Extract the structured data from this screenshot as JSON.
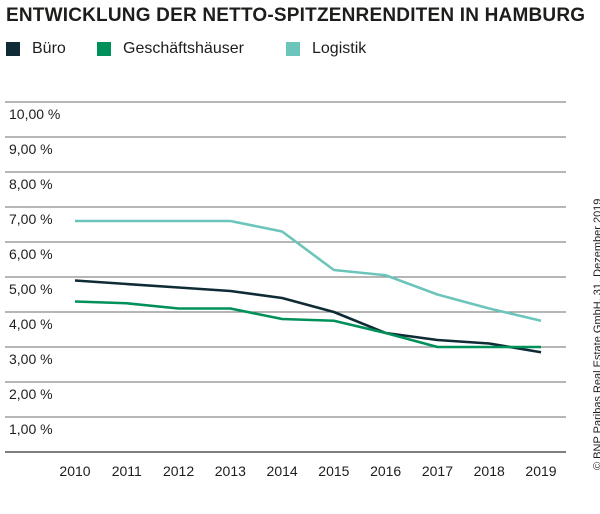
{
  "chart_data": {
    "type": "line",
    "title": "ENTWICKLUNG DER NETTO-SPITZENRENDITEN IN HAMBURG",
    "x": [
      "2010",
      "2011",
      "2012",
      "2013",
      "2014",
      "2015",
      "2016",
      "2017",
      "2018",
      "2019"
    ],
    "y_ticks": [
      "1,00 %",
      "2,00 %",
      "3,00 %",
      "4,00 %",
      "5,00 %",
      "6,00 %",
      "7,00 %",
      "8,00 %",
      "9,00 %",
      "10,00 %"
    ],
    "ylim": [
      0,
      10
    ],
    "grid": true,
    "legend_position": "top-left",
    "series": [
      {
        "name": "Büro",
        "color": "#0f2b35",
        "values": [
          4.9,
          4.8,
          4.7,
          4.6,
          4.4,
          4.0,
          3.4,
          3.2,
          3.1,
          2.85
        ]
      },
      {
        "name": "Geschäftshäuser",
        "color": "#00915a",
        "values": [
          4.3,
          4.25,
          4.1,
          4.1,
          3.8,
          3.75,
          3.4,
          3.0,
          3.0,
          3.0
        ]
      },
      {
        "name": "Logistik",
        "color": "#6cc5bb",
        "values": [
          6.6,
          6.6,
          6.6,
          6.6,
          6.3,
          5.2,
          5.05,
          4.5,
          4.1,
          3.75
        ]
      }
    ]
  },
  "credit": "© BNP Paribas Real Estate GmbH, 31. Dezember 2019"
}
